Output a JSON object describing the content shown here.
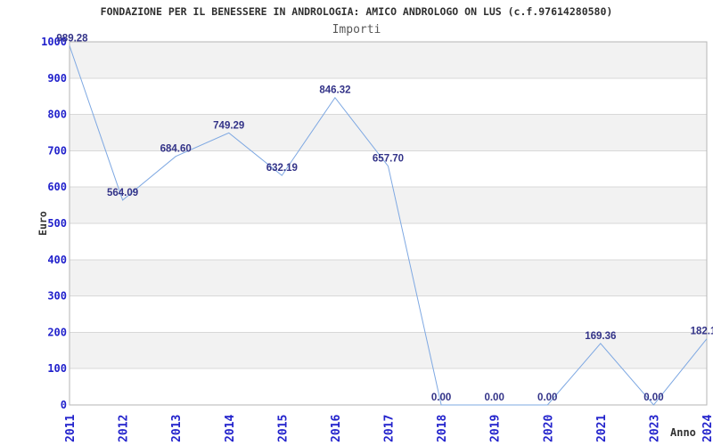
{
  "chart_data": {
    "type": "line",
    "title": "FONDAZIONE PER IL BENESSERE IN ANDROLOGIA: AMICO ANDROLOGO ON LUS (c.f.97614280580)",
    "subtitle": "Importi",
    "xlabel": "Anno",
    "ylabel": "Euro",
    "categories": [
      "2011",
      "2012",
      "2013",
      "2014",
      "2015",
      "2016",
      "2017",
      "2018",
      "2019",
      "2020",
      "2021",
      "2023",
      "2024"
    ],
    "series": [
      {
        "name": "Importi",
        "values": [
          989.28,
          564.09,
          684.6,
          749.29,
          632.19,
          846.32,
          657.7,
          0.0,
          0.0,
          0.0,
          169.36,
          0.0,
          182.1
        ]
      }
    ],
    "point_labels": [
      "989.28",
      "564.09",
      "684.60",
      "749.29",
      "632.19",
      "846.32",
      "657.70",
      "0.00",
      "0.00",
      "0.00",
      "169.36",
      "0.00",
      "182.1"
    ],
    "ylim": [
      0,
      1000
    ],
    "ytick_step": 100,
    "grid": "horizontal",
    "bands": "alternating-gray-per-100",
    "legend": "none",
    "colors": {
      "line": "#7EA8E2",
      "tick_label": "#2222CC",
      "point_label": "#333388",
      "band": "#F2F2F2",
      "gridline": "#D8D8D8",
      "plot_border": "#B5B5B5",
      "title": "#2F2F2F",
      "subtitle": "#585858",
      "axis_title": "#333333"
    }
  }
}
